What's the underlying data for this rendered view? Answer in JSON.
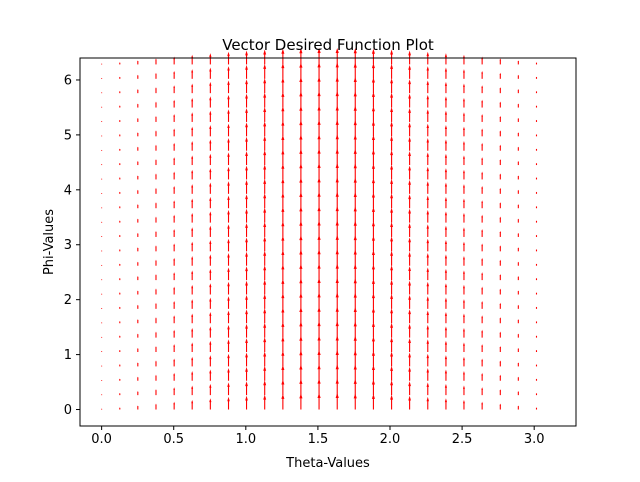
{
  "chart_data": {
    "type": "quiver",
    "title": "Vector Desired Function Plot",
    "xlabel": "Theta-Values",
    "ylabel": "Phi-Values",
    "xlim": [
      -0.15,
      3.29
    ],
    "ylim": [
      -0.3,
      6.4
    ],
    "xticks": [
      0.0,
      0.5,
      1.0,
      1.5,
      2.0,
      2.5,
      3.0
    ],
    "xtick_labels": [
      "0.0",
      "0.5",
      "1.0",
      "1.5",
      "2.0",
      "2.5",
      "3.0"
    ],
    "yticks": [
      0,
      1,
      2,
      3,
      4,
      5,
      6
    ],
    "ytick_labels": [
      "0",
      "1",
      "2",
      "3",
      "4",
      "5",
      "6"
    ],
    "theta": [
      0.0,
      0.126,
      0.251,
      0.377,
      0.503,
      0.628,
      0.754,
      0.88,
      1.005,
      1.131,
      1.257,
      1.382,
      1.508,
      1.634,
      1.759,
      1.885,
      2.011,
      2.136,
      2.262,
      2.388,
      2.513,
      2.639,
      2.765,
      2.89,
      3.016
    ],
    "phi": [
      0.0,
      0.262,
      0.524,
      0.785,
      1.047,
      1.309,
      1.571,
      1.833,
      2.094,
      2.356,
      2.618,
      2.88,
      3.142,
      3.403,
      3.665,
      3.927,
      4.189,
      4.451,
      4.712,
      4.974,
      5.236,
      5.498,
      5.76,
      6.021,
      6.283
    ],
    "vector_component": "phi",
    "vector_magnitude_function": "sin(theta)",
    "color": "#ff0000",
    "grid": false
  }
}
